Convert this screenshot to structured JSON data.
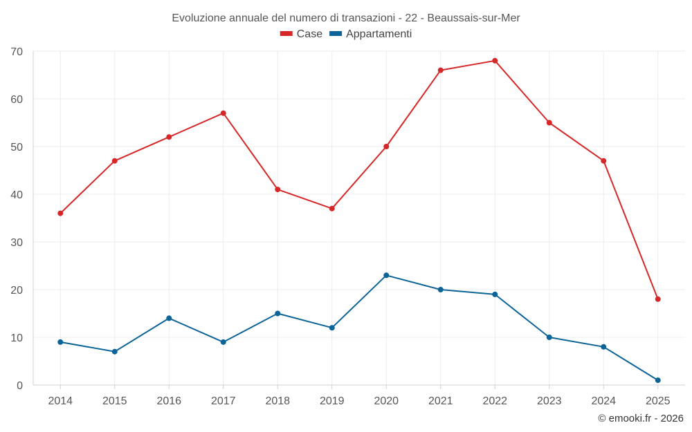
{
  "chart_data": {
    "type": "line",
    "title": "Evoluzione annuale del numero di transazioni - 22 - Beaussais-sur-Mer",
    "xlabel": "",
    "ylabel": "",
    "categories": [
      "2014",
      "2015",
      "2016",
      "2017",
      "2018",
      "2019",
      "2020",
      "2021",
      "2022",
      "2023",
      "2024",
      "2025"
    ],
    "ylim": [
      0,
      70
    ],
    "yticks": [
      0,
      10,
      20,
      30,
      40,
      50,
      60,
      70
    ],
    "grid": true,
    "legend_position": "top-center",
    "series": [
      {
        "name": "Case",
        "color": "#d62728",
        "values": [
          36,
          47,
          52,
          57,
          41,
          37,
          50,
          66,
          68,
          55,
          47,
          18
        ]
      },
      {
        "name": "Appartamenti",
        "color": "#0b6397",
        "values": [
          9,
          7,
          14,
          9,
          15,
          12,
          23,
          20,
          19,
          10,
          8,
          1
        ]
      }
    ]
  },
  "credit": "© emooki.fr - 2026"
}
